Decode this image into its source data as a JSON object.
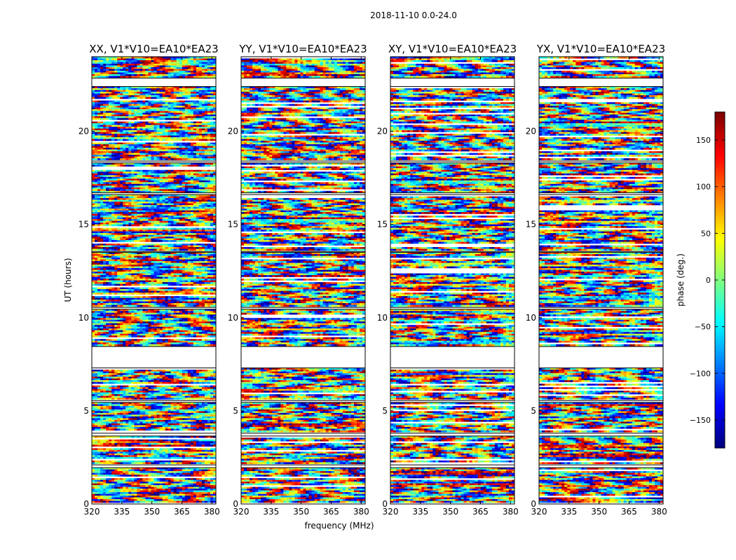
{
  "suptitle": "2018-11-10 0.0-24.0",
  "xlabel": "frequency (MHz)",
  "ylabel": "UT (hours)",
  "colorbar_label": "phase (deg.)",
  "colormap": "jet",
  "chart_data": {
    "type": "heatmap",
    "title": "2018-11-10 0.0-24.0",
    "xlabel": "frequency (MHz)",
    "ylabel": "UT (hours)",
    "xlim": [
      320,
      382
    ],
    "ylim": [
      0,
      24
    ],
    "xticks": [
      320,
      335,
      350,
      365,
      380
    ],
    "xtick_labels": [
      "320",
      "335",
      "350",
      "365",
      "380"
    ],
    "yticks": [
      0,
      5,
      10,
      15,
      20
    ],
    "ytick_labels": [
      "0",
      "5",
      "10",
      "15",
      "20"
    ],
    "panels": [
      {
        "name": "XX, V1*V10=EA10*EA23"
      },
      {
        "name": "YY, V1*V10=EA10*EA23"
      },
      {
        "name": "XY, V1*V10=EA10*EA23"
      },
      {
        "name": "YX, V1*V10=EA10*EA23"
      }
    ],
    "colorbar": {
      "label": "phase (deg.)",
      "range": [
        -180,
        180
      ],
      "ticks": [
        -150,
        -100,
        -50,
        0,
        50,
        100,
        150
      ],
      "tick_labels": [
        "−150",
        "−100",
        "−50",
        "0",
        "50",
        "100",
        "150"
      ]
    },
    "data_present_ut_hours": [
      [
        0,
        1.95
      ],
      [
        2.1,
        3.65
      ],
      [
        3.8,
        5.45
      ],
      [
        5.55,
        7.3
      ],
      [
        8.45,
        10.45
      ],
      [
        10.55,
        13.5
      ],
      [
        13.55,
        16.6
      ],
      [
        16.7,
        18.3
      ],
      [
        18.4,
        22.4
      ],
      [
        22.85,
        24
      ]
    ],
    "colorbar_range": [
      -180,
      180
    ]
  }
}
